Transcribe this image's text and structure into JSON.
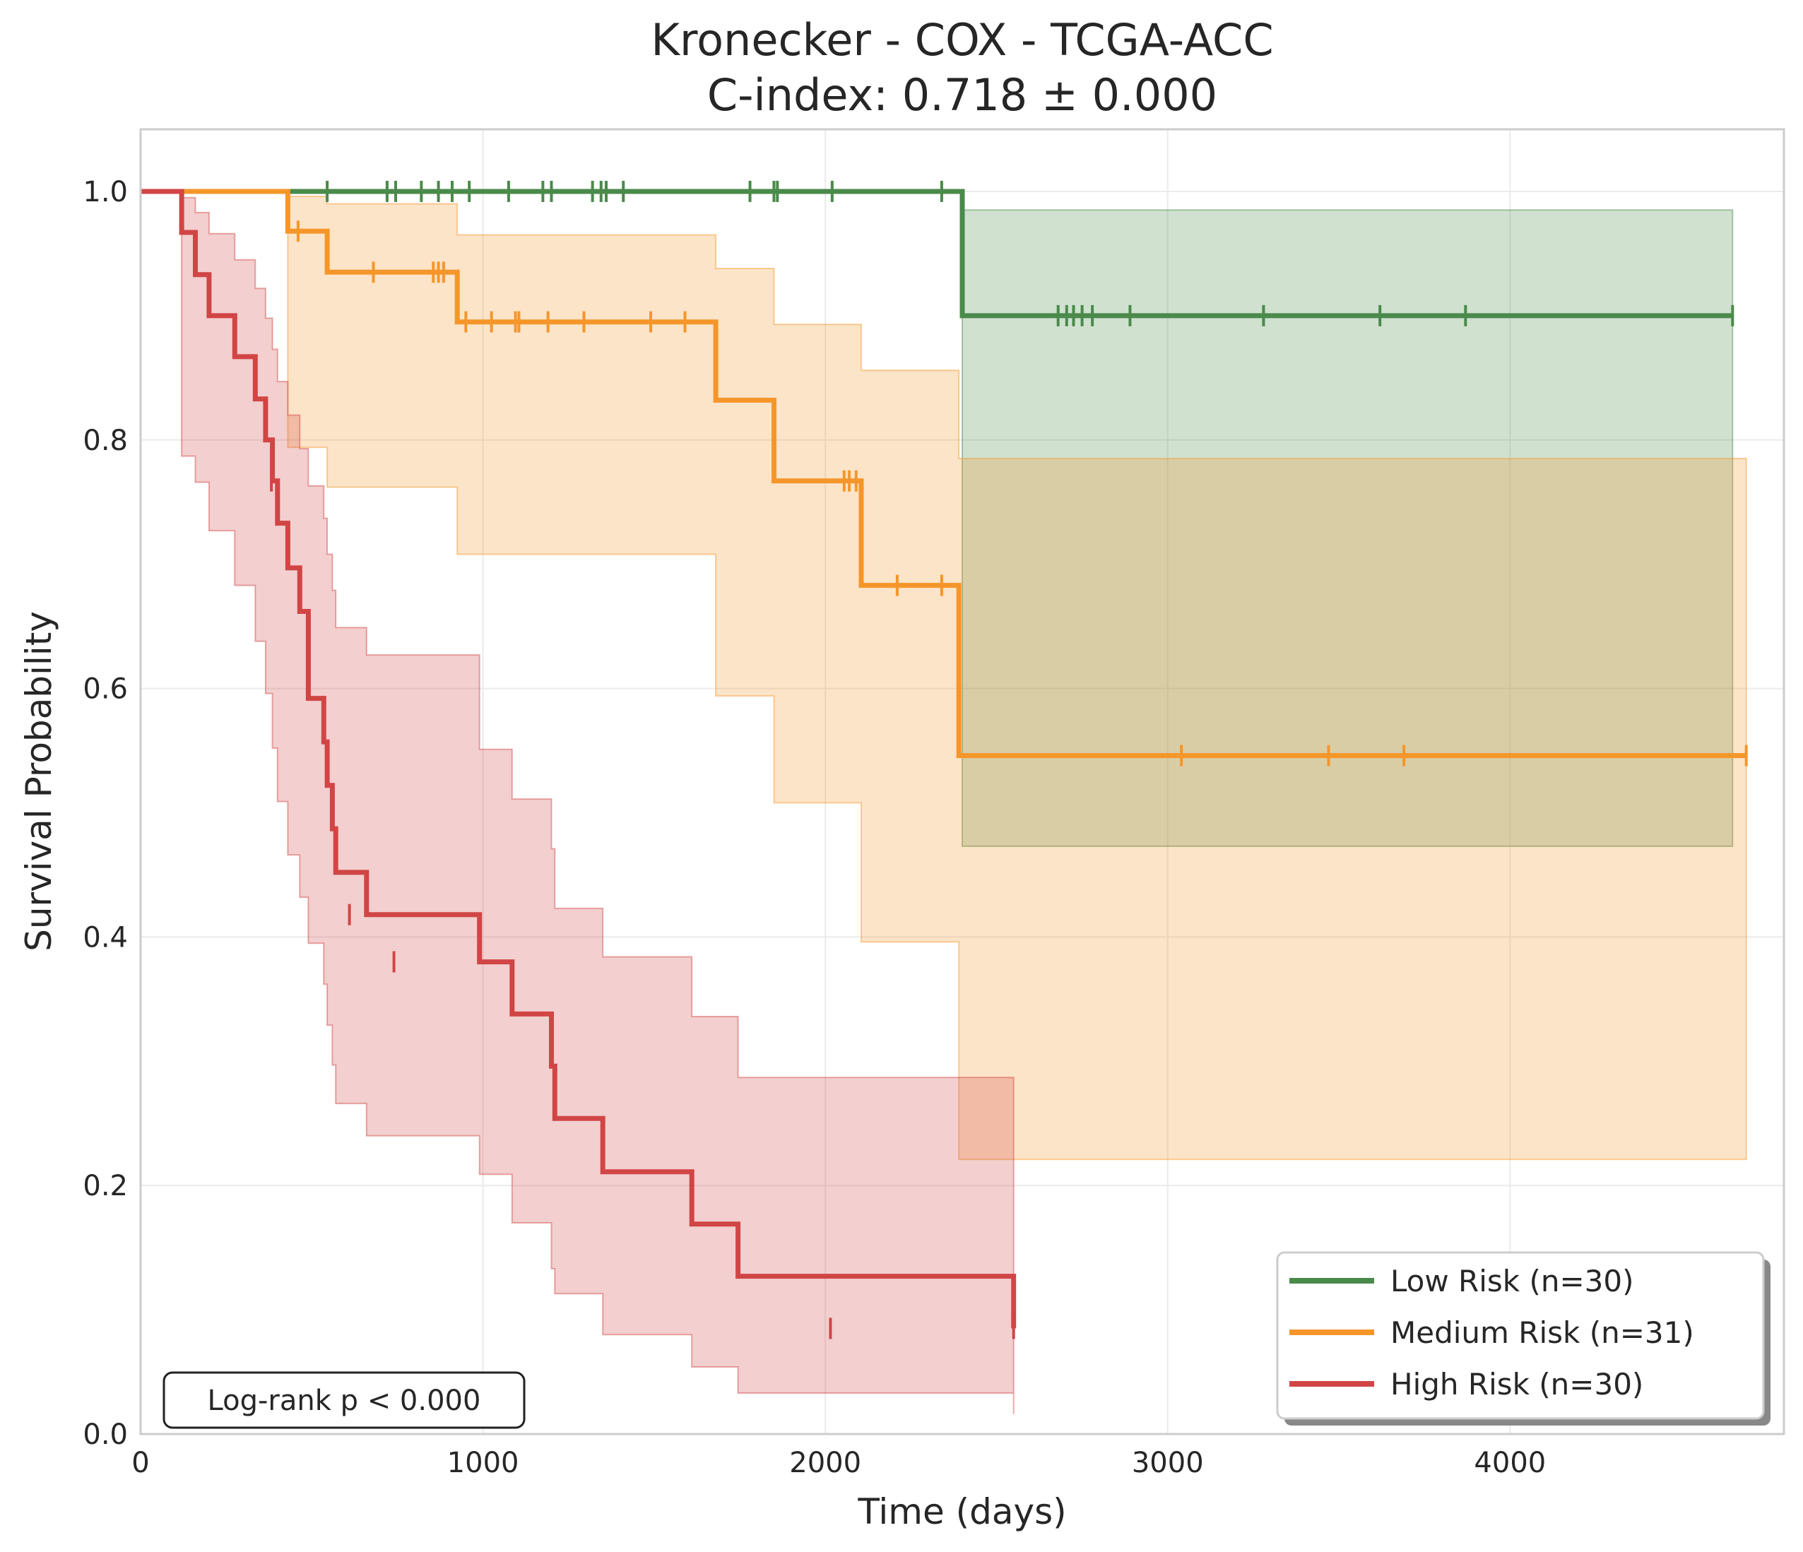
{
  "chart_data": {
    "type": "line",
    "title": "Kronecker - COX - TCGA-ACC",
    "subtitle": "C-index: 0.718 ± 0.000",
    "xlabel": "Time (days)",
    "ylabel": "Survival Probability",
    "xlim": [
      0,
      4800
    ],
    "ylim": [
      0,
      1.05
    ],
    "xticks": [
      0,
      1000,
      2000,
      3000,
      4000
    ],
    "xtick_labels": [
      "0",
      "1000",
      "2000",
      "3000",
      "4000"
    ],
    "yticks": [
      0,
      0.2,
      0.4,
      0.6,
      0.8,
      1.0
    ],
    "ytick_labels": [
      "0.0",
      "0.2",
      "0.4",
      "0.6",
      "0.8",
      "1.0"
    ],
    "grid": true,
    "legend_position": "lower-right",
    "annotation": "Log-rank p < 0.000",
    "series": [
      {
        "name": "Low Risk (n=30)",
        "color": "#4a8a4a",
        "step_x": [
          0,
          2400,
          4650
        ],
        "step_y": [
          1.0,
          0.9,
          0.9
        ],
        "ci_x": [
          2400,
          4650
        ],
        "ci_lower": [
          0.473,
          0.473
        ],
        "ci_upper": [
          0.985,
          0.985
        ],
        "censor_x": [
          545,
          720,
          745,
          820,
          870,
          910,
          960,
          1075,
          1175,
          1200,
          1320,
          1345,
          1360,
          1410,
          1780,
          1850,
          1860,
          2020,
          2340,
          2680,
          2705,
          2725,
          2750,
          2780,
          2890,
          3280,
          3620,
          3870,
          4650
        ],
        "censor_y": [
          1,
          1,
          1,
          1,
          1,
          1,
          1,
          1,
          1,
          1,
          1,
          1,
          1,
          1,
          1,
          1,
          1,
          1,
          1,
          0.9,
          0.9,
          0.9,
          0.9,
          0.9,
          0.9,
          0.9,
          0.9,
          0.9,
          0.9
        ]
      },
      {
        "name": "Medium Risk (n=31)",
        "color": "#f5962a",
        "step_x": [
          0,
          430,
          545,
          925,
          1680,
          1850,
          2105,
          2390,
          4690
        ],
        "step_y": [
          1.0,
          0.968,
          0.935,
          0.895,
          0.832,
          0.767,
          0.683,
          0.546,
          0.546
        ],
        "ci_x": [
          430,
          545,
          925,
          1680,
          1850,
          2105,
          2390,
          4690
        ],
        "ci_lower": [
          0.794,
          0.762,
          0.708,
          0.594,
          0.508,
          0.396,
          0.221,
          0.221
        ],
        "ci_upper": [
          0.996,
          0.99,
          0.965,
          0.938,
          0.893,
          0.856,
          0.785,
          0.785
        ],
        "censor_x": [
          460,
          680,
          855,
          870,
          885,
          950,
          1025,
          1095,
          1105,
          1190,
          1295,
          1490,
          1590,
          2055,
          2070,
          2090,
          2210,
          2340,
          3040,
          3470,
          3690,
          4690
        ],
        "censor_y": [
          0.968,
          0.935,
          0.935,
          0.935,
          0.935,
          0.895,
          0.895,
          0.895,
          0.895,
          0.895,
          0.895,
          0.895,
          0.895,
          0.767,
          0.767,
          0.767,
          0.683,
          0.683,
          0.546,
          0.546,
          0.546,
          0.546
        ]
      },
      {
        "name": "High Risk (n=30)",
        "color": "#d14545",
        "step_x": [
          0,
          120,
          160,
          200,
          275,
          335,
          365,
          385,
          400,
          430,
          465,
          490,
          535,
          545,
          560,
          570,
          660,
          990,
          1085,
          1200,
          1210,
          1350,
          1610,
          1745,
          2550
        ],
        "step_y": [
          1.0,
          0.967,
          0.933,
          0.9,
          0.867,
          0.833,
          0.8,
          0.767,
          0.733,
          0.697,
          0.662,
          0.592,
          0.557,
          0.522,
          0.487,
          0.452,
          0.418,
          0.38,
          0.338,
          0.296,
          0.254,
          0.211,
          0.169,
          0.127,
          0.085
        ],
        "ci_x": [
          120,
          160,
          200,
          275,
          335,
          365,
          385,
          400,
          430,
          465,
          490,
          535,
          545,
          560,
          570,
          660,
          990,
          1085,
          1200,
          1210,
          1350,
          1610,
          1745,
          2550
        ],
        "ci_lower": [
          0.787,
          0.766,
          0.727,
          0.683,
          0.638,
          0.596,
          0.552,
          0.509,
          0.466,
          0.432,
          0.395,
          0.362,
          0.329,
          0.297,
          0.266,
          0.24,
          0.209,
          0.17,
          0.133,
          0.113,
          0.08,
          0.054,
          0.033,
          0.016
        ],
        "ci_upper": [
          0.995,
          0.983,
          0.966,
          0.945,
          0.922,
          0.898,
          0.873,
          0.847,
          0.82,
          0.793,
          0.763,
          0.737,
          0.708,
          0.679,
          0.649,
          0.627,
          0.551,
          0.511,
          0.471,
          0.423,
          0.384,
          0.336,
          0.287,
          0.234
        ],
        "censor_x": [
          382,
          610,
          740,
          2015,
          2550
        ],
        "censor_y": [
          0.767,
          0.418,
          0.38,
          0.085,
          0.085
        ]
      }
    ]
  }
}
